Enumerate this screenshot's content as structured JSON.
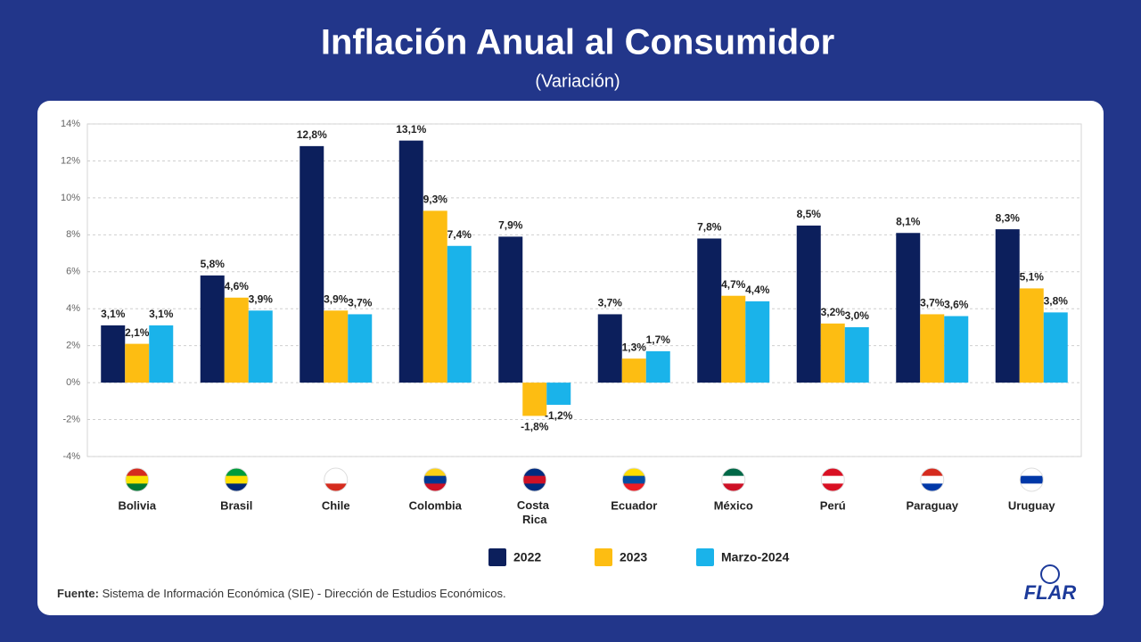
{
  "chart_data": {
    "type": "bar",
    "title": "Inflación Anual al Consumidor",
    "subtitle": "(Variación)",
    "categories": [
      "Bolivia",
      "Brasil",
      "Chile",
      "Colombia",
      "Costa Rica",
      "Ecuador",
      "México",
      "Perú",
      "Paraguay",
      "Uruguay"
    ],
    "series": [
      {
        "name": "2022",
        "color": "#0c1f5c",
        "values": [
          3.1,
          5.8,
          12.8,
          13.1,
          7.9,
          3.7,
          7.8,
          8.5,
          8.1,
          8.3
        ],
        "value_labels": [
          "3,1%",
          "5,8%",
          "12,8%",
          "13,1%",
          "7,9%",
          "3,7%",
          "7,8%",
          "8,5%",
          "8,1%",
          "8,3%"
        ]
      },
      {
        "name": "2023",
        "color": "#fdbd12",
        "values": [
          2.1,
          4.6,
          3.9,
          9.3,
          -1.8,
          1.3,
          4.7,
          3.2,
          3.7,
          5.1
        ],
        "value_labels": [
          "2,1%",
          "4,6%",
          "3,9%",
          "9,3%",
          "-1,8%",
          "1,3%",
          "4,7%",
          "3,2%",
          "3,7%",
          "5,1%"
        ]
      },
      {
        "name": "Marzo-2024",
        "color": "#1ab3ea",
        "values": [
          3.1,
          3.9,
          3.7,
          7.4,
          -1.2,
          1.7,
          4.4,
          3.0,
          3.6,
          3.8
        ],
        "value_labels": [
          "3,1%",
          "3,9%",
          "3,7%",
          "7,4%",
          "-1,2%",
          "1,7%",
          "4,4%",
          "3,0%",
          "3,6%",
          "3,8%"
        ]
      }
    ],
    "ylim": [
      -4,
      14
    ],
    "yticks": [
      {
        "value": -4,
        "label": "-4%"
      },
      {
        "value": -2,
        "label": "-2%"
      },
      {
        "value": 0,
        "label": "0%"
      },
      {
        "value": 2,
        "label": "2%"
      },
      {
        "value": 4,
        "label": "4%"
      },
      {
        "value": 6,
        "label": "6%"
      },
      {
        "value": 8,
        "label": "8%"
      },
      {
        "value": 10,
        "label": "10%"
      },
      {
        "value": 12,
        "label": "12%"
      },
      {
        "value": 14,
        "label": "14%"
      }
    ],
    "grid": true,
    "legend": "bottom",
    "source_label": "Fuente:",
    "source": "Sistema de Información Económica (SIE) - Dirección de Estudios Económicos.",
    "logo": "FLAR"
  }
}
